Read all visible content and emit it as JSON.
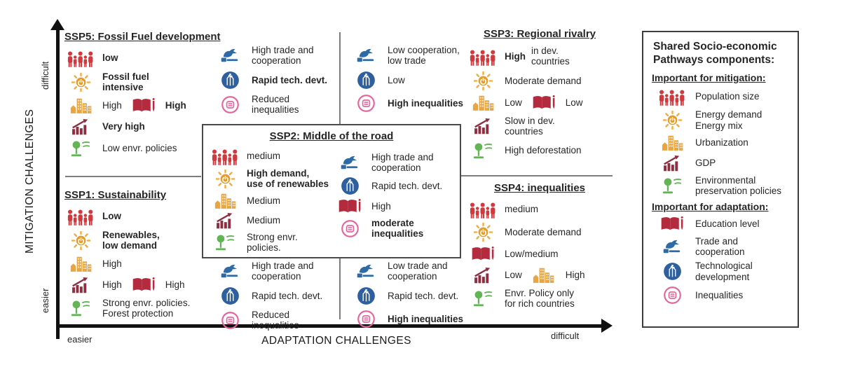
{
  "axes": {
    "y_label": "MITIGATION CHALLENGES",
    "y_top": "difficult",
    "y_bottom": "easier",
    "x_label": "ADAPTATION CHALLENGES",
    "x_left": "easier",
    "x_right": "difficult"
  },
  "colors": {
    "population": "#cf3a3f",
    "energy": "#f3ab39",
    "energy_center": "#e89a26",
    "urbanization": "#eaa53f",
    "gdp": "#8e2e40",
    "environment": "#62b455",
    "education": "#b32b3d",
    "trade": "#2e6ba5",
    "tech": "#2e5f9e",
    "inequalities": "#e4659c"
  },
  "ssp2_box": {
    "title": "SSP2: Middle of the road"
  },
  "panels": [
    {
      "id": "ssp5",
      "title": "SSP5: Fossil Fuel development",
      "rows": [
        {
          "segs": [
            {
              "icon": "population"
            },
            {
              "t": "low",
              "b": 1
            }
          ]
        },
        {
          "segs": [
            {
              "icon": "energy"
            },
            {
              "t": "Fossil fuel\nintensive",
              "b": 1
            }
          ]
        },
        {
          "segs": [
            {
              "icon": "urbanization"
            },
            {
              "t": "High"
            },
            {
              "icon": "education"
            },
            {
              "t": "High",
              "b": 1
            }
          ]
        },
        {
          "segs": [
            {
              "icon": "gdp"
            },
            {
              "t": "Very high",
              "b": 1
            }
          ]
        },
        {
          "segs": [
            {
              "icon": "environment"
            },
            {
              "t": "Low envr. policies"
            }
          ]
        }
      ]
    },
    {
      "id": "ssp5-adapt",
      "rows": [
        {
          "segs": [
            {
              "icon": "trade"
            },
            {
              "t": "High trade and\ncooperation"
            }
          ]
        },
        {
          "segs": [
            {
              "icon": "tech"
            },
            {
              "t": "Rapid tech. devt.",
              "b": 1
            }
          ]
        },
        {
          "segs": [
            {
              "icon": "inequalities"
            },
            {
              "t": "Reduced inequalities"
            }
          ]
        }
      ]
    },
    {
      "id": "ssp3-adapt",
      "rows": [
        {
          "segs": [
            {
              "icon": "trade"
            },
            {
              "t": "Low cooperation,\nlow trade"
            }
          ]
        },
        {
          "segs": [
            {
              "icon": "tech"
            },
            {
              "t": "Low"
            }
          ]
        },
        {
          "segs": [
            {
              "icon": "inequalities"
            },
            {
              "t": "High inequalities",
              "b": 1
            }
          ]
        }
      ]
    },
    {
      "id": "ssp3",
      "title": "SSP3: Regional rivalry",
      "center": true,
      "rows": [
        {
          "segs": [
            {
              "icon": "population"
            },
            {
              "t": "High",
              "b": 1
            },
            {
              "t": " in dev.\ncountries"
            }
          ]
        },
        {
          "segs": [
            {
              "icon": "energy"
            },
            {
              "t": "Moderate demand"
            }
          ]
        },
        {
          "segs": [
            {
              "icon": "urbanization"
            },
            {
              "t": "Low"
            },
            {
              "icon": "education"
            },
            {
              "t": "Low"
            }
          ]
        },
        {
          "segs": [
            {
              "icon": "gdp"
            },
            {
              "t": "Slow in dev.\ncountries"
            }
          ]
        },
        {
          "segs": [
            {
              "icon": "environment"
            },
            {
              "t": "High deforestation"
            }
          ]
        }
      ]
    },
    {
      "id": "ssp2-mit",
      "rows": [
        {
          "segs": [
            {
              "icon": "population"
            },
            {
              "t": "medium"
            }
          ]
        },
        {
          "segs": [
            {
              "icon": "energy"
            },
            {
              "t": "High demand,\nuse of renewables",
              "b": 1
            }
          ]
        },
        {
          "segs": [
            {
              "icon": "urbanization"
            },
            {
              "t": "Medium"
            }
          ]
        },
        {
          "segs": [
            {
              "icon": "gdp"
            },
            {
              "t": "Medium"
            }
          ]
        },
        {
          "segs": [
            {
              "icon": "environment"
            },
            {
              "t": "Strong envr.\npolicies."
            }
          ]
        }
      ]
    },
    {
      "id": "ssp2-adapt",
      "rows": [
        {
          "segs": [
            {
              "icon": "trade"
            },
            {
              "t": "High trade and\ncooperation"
            }
          ]
        },
        {
          "segs": [
            {
              "icon": "tech"
            },
            {
              "t": "Rapid tech. devt."
            }
          ]
        },
        {
          "segs": [
            {
              "icon": "education"
            },
            {
              "t": "High"
            }
          ]
        },
        {
          "segs": [
            {
              "icon": "inequalities"
            },
            {
              "t": "moderate\ninequalities",
              "b": 1
            }
          ]
        }
      ]
    },
    {
      "id": "ssp1",
      "title": "SSP1: Sustainability",
      "rows": [
        {
          "segs": [
            {
              "icon": "population"
            },
            {
              "t": "Low",
              "b": 1
            }
          ]
        },
        {
          "segs": [
            {
              "icon": "energy"
            },
            {
              "t": "Renewables,\nlow demand",
              "b": 1
            }
          ]
        },
        {
          "segs": [
            {
              "icon": "urbanization"
            },
            {
              "t": "High"
            }
          ]
        },
        {
          "segs": [
            {
              "icon": "gdp"
            },
            {
              "t": "High"
            },
            {
              "icon": "education"
            },
            {
              "t": "High"
            }
          ]
        },
        {
          "segs": [
            {
              "icon": "environment"
            },
            {
              "t": "Strong envr. policies.\nForest protection"
            }
          ]
        }
      ]
    },
    {
      "id": "ssp1-adapt",
      "rows": [
        {
          "segs": [
            {
              "icon": "trade"
            },
            {
              "t": "High trade and\ncooperation"
            }
          ]
        },
        {
          "segs": [
            {
              "icon": "tech"
            },
            {
              "t": "Rapid tech. devt."
            }
          ]
        },
        {
          "segs": [
            {
              "icon": "inequalities"
            },
            {
              "t": "Reduced inequalities"
            }
          ]
        }
      ]
    },
    {
      "id": "ssp4-adapt",
      "rows": [
        {
          "segs": [
            {
              "icon": "trade"
            },
            {
              "t": "Low trade and\ncooperation"
            }
          ]
        },
        {
          "segs": [
            {
              "icon": "tech"
            },
            {
              "t": "Rapid tech. devt."
            }
          ]
        },
        {
          "segs": [
            {
              "icon": "inequalities"
            },
            {
              "t": "High inequalities",
              "b": 1
            }
          ]
        }
      ]
    },
    {
      "id": "ssp4",
      "title": "SSP4: inequalities",
      "center": true,
      "rows": [
        {
          "segs": [
            {
              "icon": "population"
            },
            {
              "t": "medium"
            }
          ]
        },
        {
          "segs": [
            {
              "icon": "energy"
            },
            {
              "t": "Moderate demand"
            }
          ]
        },
        {
          "segs": [
            {
              "icon": "education"
            },
            {
              "t": "Low/medium"
            }
          ]
        },
        {
          "segs": [
            {
              "icon": "gdp"
            },
            {
              "t": "Low"
            },
            {
              "icon": "urbanization"
            },
            {
              "t": "High"
            }
          ]
        },
        {
          "segs": [
            {
              "icon": "environment"
            },
            {
              "t": "Envr. Policy only\nfor rich countries"
            }
          ]
        }
      ]
    }
  ],
  "legend": {
    "title": "Shared Socio-economic\nPathways components:",
    "sections": [
      {
        "heading": "Important for mitigation:",
        "items": [
          {
            "icon": "population",
            "t": "Population size"
          },
          {
            "icon": "energy",
            "t": "Energy demand\nEnergy mix"
          },
          {
            "icon": "urbanization",
            "t": "Urbanization"
          },
          {
            "icon": "gdp",
            "t": "GDP"
          },
          {
            "icon": "environment",
            "t": "Environmental\npreservation policies"
          }
        ]
      },
      {
        "heading": "Important for adaptation:",
        "items": [
          {
            "icon": "education",
            "t": "Education level"
          },
          {
            "icon": "trade",
            "t": "Trade and\ncooperation"
          },
          {
            "icon": "tech",
            "t": "Technological\ndevelopment"
          },
          {
            "icon": "inequalities",
            "t": "Inequalities"
          }
        ]
      }
    ]
  }
}
